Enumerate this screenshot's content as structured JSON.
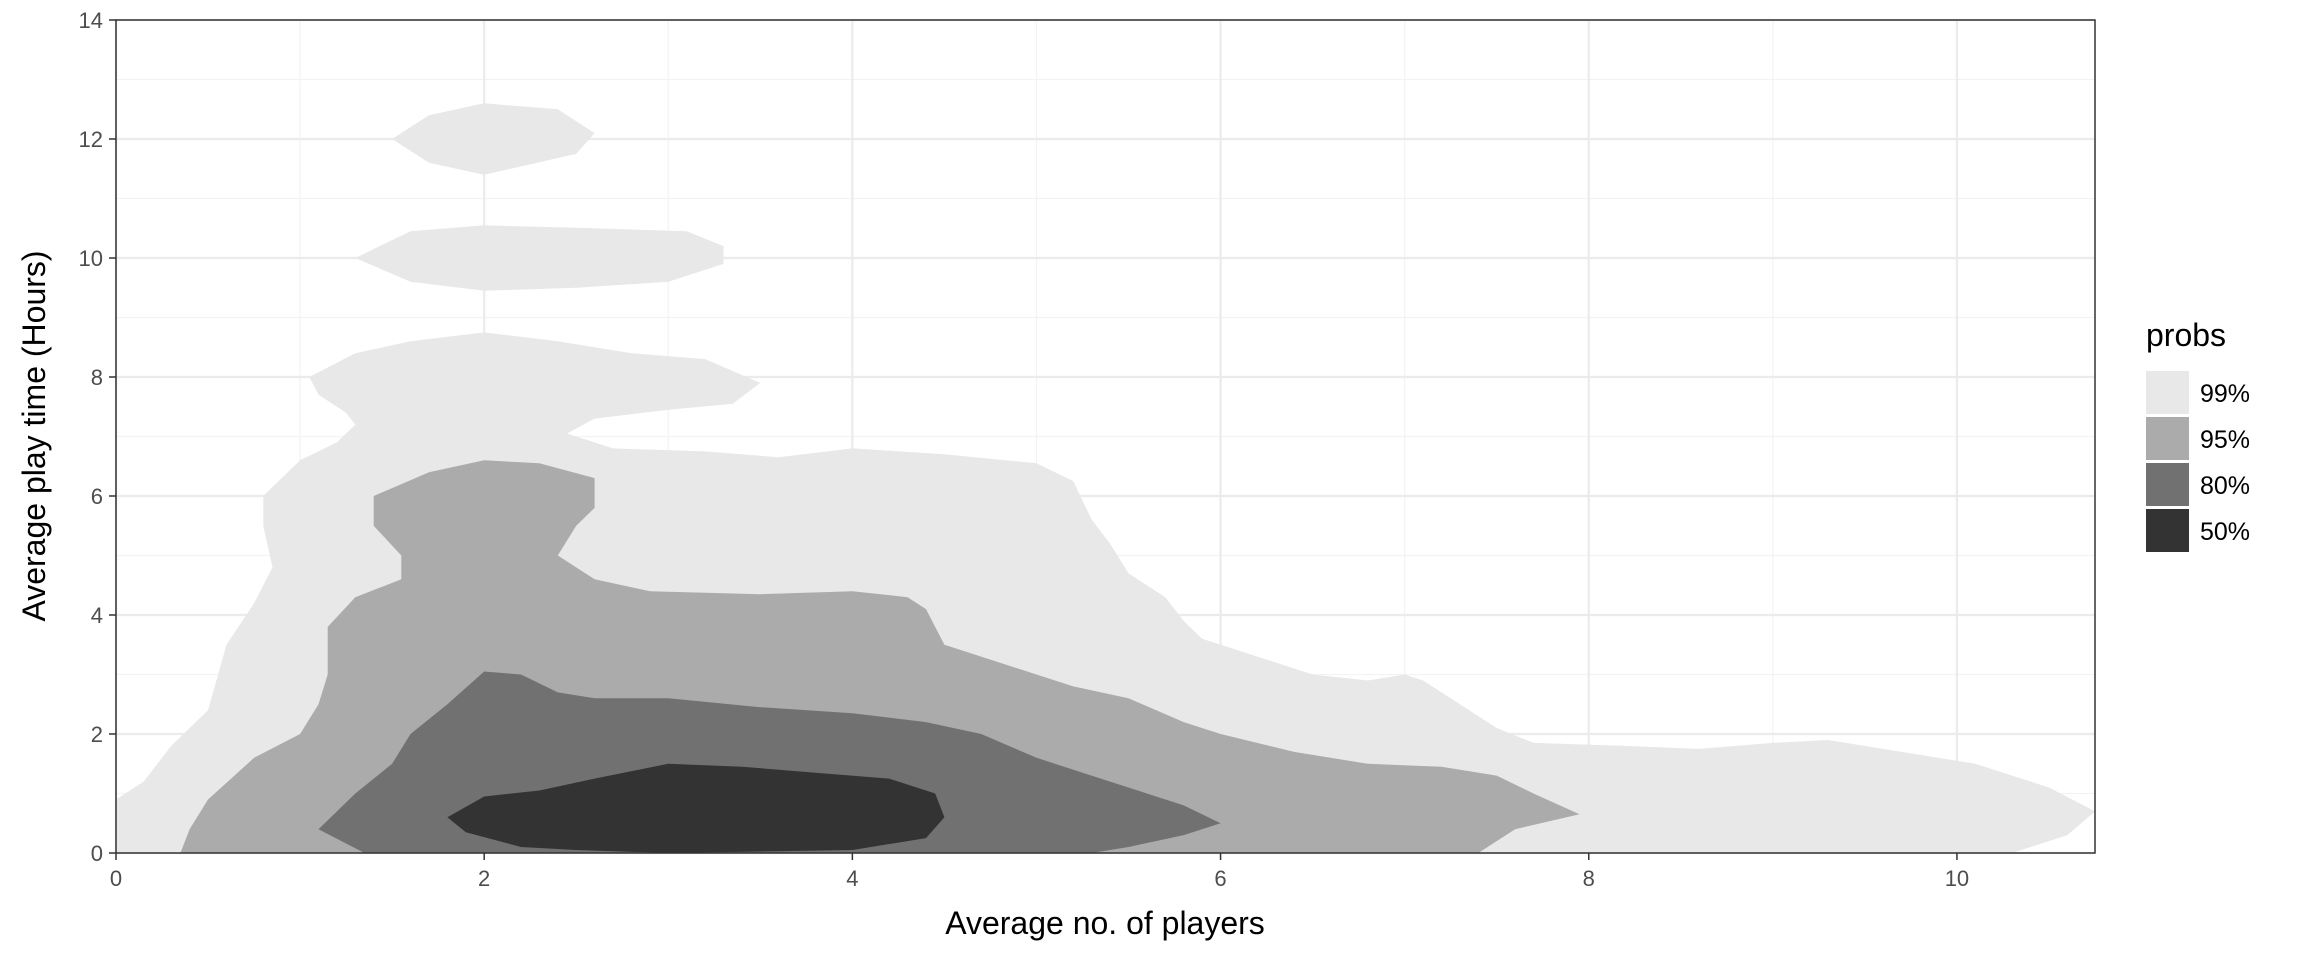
{
  "chart_data": {
    "type": "contour",
    "title": "",
    "xlabel": "Average no. of players",
    "ylabel": "Average play time (Hours)",
    "xlim": [
      0,
      10.75
    ],
    "ylim": [
      0,
      14
    ],
    "x_ticks": [
      0,
      2,
      4,
      6,
      8,
      10
    ],
    "y_ticks": [
      0,
      2,
      4,
      6,
      8,
      10,
      12,
      14
    ],
    "grid": true,
    "legend": {
      "title": "probs",
      "placement": "right",
      "items": [
        {
          "label": "99%",
          "color": "#e8e8e8"
        },
        {
          "label": "95%",
          "color": "#ababab"
        },
        {
          "label": "80%",
          "color": "#717171"
        },
        {
          "label": "50%",
          "color": "#333333"
        }
      ]
    },
    "series": [
      {
        "name": "99%",
        "color": "#e8e8e8",
        "regions": [
          [
            [
              0,
              0
            ],
            [
              0,
              0.9
            ],
            [
              0.15,
              1.2
            ],
            [
              0.3,
              1.8
            ],
            [
              0.5,
              2.4
            ],
            [
              0.6,
              3.5
            ],
            [
              0.75,
              4.2
            ],
            [
              0.85,
              4.8
            ],
            [
              0.8,
              5.5
            ],
            [
              0.8,
              6
            ],
            [
              1,
              6.6
            ],
            [
              1.2,
              6.9
            ],
            [
              1.3,
              7.2
            ],
            [
              1.25,
              7.4
            ],
            [
              1.1,
              7.7
            ],
            [
              1.05,
              8
            ],
            [
              1.3,
              8.4
            ],
            [
              1.6,
              8.6
            ],
            [
              2,
              8.75
            ],
            [
              2.4,
              8.6
            ],
            [
              2.8,
              8.4
            ],
            [
              3.2,
              8.3
            ],
            [
              3.5,
              7.9
            ],
            [
              3.35,
              7.55
            ],
            [
              3,
              7.45
            ],
            [
              2.6,
              7.3
            ],
            [
              2.45,
              7.05
            ],
            [
              2.7,
              6.8
            ],
            [
              3.2,
              6.75
            ],
            [
              3.6,
              6.65
            ],
            [
              4,
              6.8
            ],
            [
              4.5,
              6.7
            ],
            [
              5,
              6.55
            ],
            [
              5.2,
              6.25
            ],
            [
              5.3,
              5.6
            ],
            [
              5.4,
              5.2
            ],
            [
              5.5,
              4.7
            ],
            [
              5.7,
              4.3
            ],
            [
              5.8,
              3.9
            ],
            [
              5.9,
              3.6
            ],
            [
              6.2,
              3.3
            ],
            [
              6.5,
              3
            ],
            [
              6.8,
              2.9
            ],
            [
              7,
              3
            ],
            [
              7.1,
              2.9
            ],
            [
              7.3,
              2.5
            ],
            [
              7.5,
              2.1
            ],
            [
              7.7,
              1.85
            ],
            [
              8.2,
              1.8
            ],
            [
              8.6,
              1.75
            ],
            [
              9,
              1.85
            ],
            [
              9.3,
              1.9
            ],
            [
              9.7,
              1.7
            ],
            [
              10.1,
              1.5
            ],
            [
              10.5,
              1.1
            ],
            [
              10.75,
              0.7
            ],
            [
              10.6,
              0.3
            ],
            [
              10.3,
              0
            ],
            [
              0,
              0
            ]
          ],
          [
            [
              1.5,
              12
            ],
            [
              1.7,
              12.4
            ],
            [
              2,
              12.6
            ],
            [
              2.4,
              12.5
            ],
            [
              2.6,
              12.1
            ],
            [
              2.5,
              11.75
            ],
            [
              2,
              11.4
            ],
            [
              1.7,
              11.6
            ],
            [
              1.5,
              12
            ]
          ],
          [
            [
              1.3,
              10
            ],
            [
              1.6,
              10.45
            ],
            [
              2,
              10.55
            ],
            [
              2.6,
              10.5
            ],
            [
              3.1,
              10.45
            ],
            [
              3.3,
              10.2
            ],
            [
              3.3,
              9.9
            ],
            [
              3,
              9.6
            ],
            [
              2.5,
              9.5
            ],
            [
              2,
              9.45
            ],
            [
              1.6,
              9.6
            ],
            [
              1.3,
              10
            ]
          ]
        ]
      },
      {
        "name": "95%",
        "color": "#ababab",
        "regions": [
          [
            [
              0.35,
              0
            ],
            [
              0.4,
              0.4
            ],
            [
              0.5,
              0.9
            ],
            [
              0.75,
              1.6
            ],
            [
              1,
              2
            ],
            [
              1.1,
              2.5
            ],
            [
              1.15,
              3
            ],
            [
              1.15,
              3.8
            ],
            [
              1.3,
              4.3
            ],
            [
              1.55,
              4.6
            ],
            [
              1.55,
              5
            ],
            [
              1.4,
              5.5
            ],
            [
              1.4,
              6
            ],
            [
              1.7,
              6.4
            ],
            [
              2,
              6.6
            ],
            [
              2.3,
              6.55
            ],
            [
              2.6,
              6.3
            ],
            [
              2.6,
              5.8
            ],
            [
              2.5,
              5.5
            ],
            [
              2.4,
              5
            ],
            [
              2.6,
              4.6
            ],
            [
              2.9,
              4.4
            ],
            [
              3.5,
              4.35
            ],
            [
              4,
              4.4
            ],
            [
              4.3,
              4.3
            ],
            [
              4.4,
              4.1
            ],
            [
              4.5,
              3.5
            ],
            [
              4.7,
              3.3
            ],
            [
              5,
              3
            ],
            [
              5.2,
              2.8
            ],
            [
              5.5,
              2.6
            ],
            [
              5.8,
              2.2
            ],
            [
              6,
              2
            ],
            [
              6.4,
              1.7
            ],
            [
              6.8,
              1.5
            ],
            [
              7.2,
              1.45
            ],
            [
              7.5,
              1.3
            ],
            [
              7.7,
              1
            ],
            [
              7.95,
              0.65
            ],
            [
              7.6,
              0.4
            ],
            [
              7.4,
              0
            ],
            [
              0.35,
              0
            ]
          ]
        ]
      },
      {
        "name": "80%",
        "color": "#717171",
        "regions": [
          [
            [
              1.35,
              0
            ],
            [
              1.1,
              0.4
            ],
            [
              1.3,
              1
            ],
            [
              1.5,
              1.5
            ],
            [
              1.6,
              2
            ],
            [
              1.8,
              2.5
            ],
            [
              2,
              3.05
            ],
            [
              2.2,
              3
            ],
            [
              2.4,
              2.7
            ],
            [
              2.6,
              2.6
            ],
            [
              3,
              2.6
            ],
            [
              3.5,
              2.45
            ],
            [
              4,
              2.35
            ],
            [
              4.4,
              2.2
            ],
            [
              4.7,
              2
            ],
            [
              5,
              1.6
            ],
            [
              5.4,
              1.2
            ],
            [
              5.8,
              0.8
            ],
            [
              6,
              0.5
            ],
            [
              5.8,
              0.3
            ],
            [
              5.5,
              0.1
            ],
            [
              5.3,
              0
            ],
            [
              1.35,
              0
            ]
          ]
        ]
      },
      {
        "name": "50%",
        "color": "#333333",
        "regions": [
          [
            [
              1.9,
              0.35
            ],
            [
              1.8,
              0.6
            ],
            [
              2,
              0.95
            ],
            [
              2.3,
              1.05
            ],
            [
              2.6,
              1.25
            ],
            [
              3,
              1.5
            ],
            [
              3.4,
              1.45
            ],
            [
              3.8,
              1.35
            ],
            [
              4.2,
              1.25
            ],
            [
              4.45,
              1
            ],
            [
              4.5,
              0.6
            ],
            [
              4.4,
              0.25
            ],
            [
              4,
              0.05
            ],
            [
              3,
              0
            ],
            [
              2.5,
              0.05
            ],
            [
              2.2,
              0.1
            ],
            [
              1.9,
              0.35
            ]
          ]
        ]
      }
    ]
  }
}
